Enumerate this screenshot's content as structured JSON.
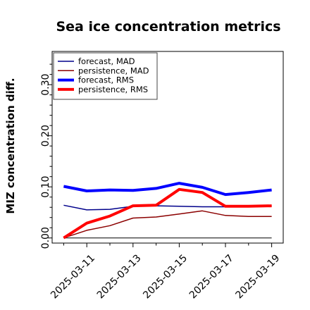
{
  "chart_data": {
    "type": "line",
    "title": "Sea ice concentration metrics",
    "xlabel": "",
    "ylabel": "MIZ concentration diff.",
    "x": [
      "2025-03-10",
      "2025-03-11",
      "2025-03-12",
      "2025-03-13",
      "2025-03-14",
      "2025-03-15",
      "2025-03-16",
      "2025-03-17",
      "2025-03-18",
      "2025-03-19"
    ],
    "x_tick_labels": [
      "2025-03-11",
      "2025-03-13",
      "2025-03-15",
      "2025-03-17",
      "2025-03-19"
    ],
    "x_tick_colors": [
      "#2e8b2e",
      "#000000",
      "#000000",
      "#000000",
      "#000000"
    ],
    "yticks": [
      "0.00",
      "0.10",
      "0.20",
      "0.30"
    ],
    "ylim": [
      -0.01,
      0.365
    ],
    "grid": false,
    "legend_position": "top-left",
    "series": [
      {
        "name": "forecast, MAD",
        "color": "#00008b",
        "width": 1.5,
        "values": [
          0.064,
          0.055,
          0.056,
          0.062,
          0.063,
          0.062,
          0.061,
          0.061,
          0.062,
          0.063
        ]
      },
      {
        "name": "persistence, MAD",
        "color": "#8b0000",
        "width": 1.5,
        "values": [
          0.0,
          0.015,
          0.024,
          0.039,
          0.041,
          0.047,
          0.053,
          0.044,
          0.042,
          0.042
        ]
      },
      {
        "name": "forecast, RMS",
        "color": "#0000ff",
        "width": 4,
        "values": [
          0.101,
          0.092,
          0.094,
          0.093,
          0.097,
          0.107,
          0.099,
          0.085,
          0.089,
          0.094
        ]
      },
      {
        "name": "persistence, RMS",
        "color": "#ff0000",
        "width": 4,
        "values": [
          0.0,
          0.029,
          0.043,
          0.063,
          0.064,
          0.095,
          0.089,
          0.062,
          0.062,
          0.063
        ]
      }
    ],
    "reference_line": 0.0
  }
}
